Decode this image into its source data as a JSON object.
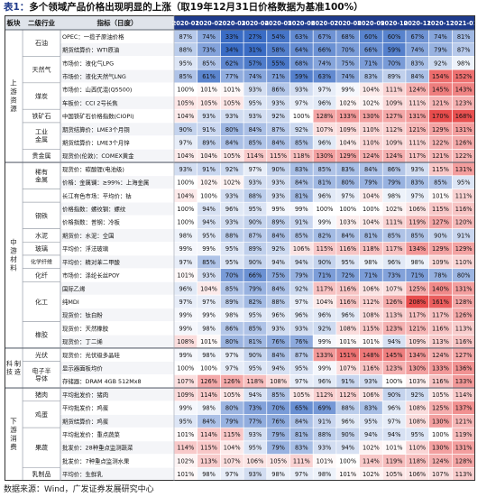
{
  "title": {
    "lead": "表1：",
    "text": "多个领域产品价格出现明显的上涨（取19年12月31日价格数据为基准100%）"
  },
  "footer": "数据来源：Wind，广发证券发展研究中心",
  "chart_data": {
    "type": "table",
    "headers": {
      "sector": "板块",
      "industry": "二级行业",
      "indicator": "指标（日度）"
    },
    "months": [
      "2020-01",
      "2020-02",
      "2020-03",
      "2020-04",
      "2020-05",
      "2020-06",
      "2020-07",
      "2020-08",
      "2020-09",
      "2020-10",
      "2020-11",
      "2020-12",
      "2021-01"
    ],
    "sectors": [
      {
        "name": "上游资源",
        "start": 0,
        "span": 10
      },
      {
        "name": "中游材料",
        "start": 10,
        "span": 14
      },
      {
        "name": "科技制造",
        "start": 24,
        "span": 3
      },
      {
        "name": "下游消费",
        "start": 27,
        "span": 7
      }
    ],
    "industries": [
      {
        "name": "石油",
        "start": 0,
        "span": 2
      },
      {
        "name": "天然气",
        "start": 2,
        "span": 2
      },
      {
        "name": "煤炭",
        "start": 4,
        "span": 2
      },
      {
        "name": "铁矿石",
        "start": 6,
        "span": 1
      },
      {
        "name": "工业金属",
        "start": 7,
        "span": 2
      },
      {
        "name": "贵金属",
        "start": 9,
        "span": 1
      },
      {
        "name": "稀有金属",
        "start": 10,
        "span": 2
      },
      {
        "name": "",
        "start": 12,
        "span": 1
      },
      {
        "name": "钢铁",
        "start": 13,
        "span": 2
      },
      {
        "name": "水泥",
        "start": 15,
        "span": 1
      },
      {
        "name": "玻璃",
        "start": 16,
        "span": 1
      },
      {
        "name": "化学纤维",
        "start": 17,
        "span": 1
      },
      {
        "name": "化纤",
        "start": 18,
        "span": 1
      },
      {
        "name": "化工",
        "start": 19,
        "span": 3
      },
      {
        "name": "橡胶",
        "start": 22,
        "span": 2
      },
      {
        "name": "光伏",
        "start": 24,
        "span": 1
      },
      {
        "name": "电子半导体",
        "start": 25,
        "span": 2
      },
      {
        "name": "猪肉",
        "start": 27,
        "span": 1
      },
      {
        "name": "鸡蛋",
        "start": 28,
        "span": 2
      },
      {
        "name": "果蔬",
        "start": 30,
        "span": 3
      },
      {
        "name": "乳制品",
        "start": 33,
        "span": 1
      }
    ],
    "rows": [
      {
        "indicator": "OPEC：一揽子原油价格",
        "values": [
          87,
          74,
          33,
          27,
          54,
          63,
          67,
          68,
          60,
          60,
          67,
          74,
          81
        ]
      },
      {
        "indicator": "期货结算价：WTI原油",
        "values": [
          88,
          73,
          34,
          31,
          58,
          64,
          66,
          70,
          66,
          59,
          74,
          79,
          87
        ]
      },
      {
        "indicator": "市场价：液化气LPG",
        "values": [
          95,
          85,
          62,
          57,
          55,
          68,
          74,
          75,
          71,
          70,
          83,
          92,
          98
        ]
      },
      {
        "indicator": "市场价：液化天然气LNG",
        "values": [
          85,
          61,
          77,
          74,
          71,
          59,
          63,
          74,
          83,
          89,
          84,
          154,
          152
        ]
      },
      {
        "indicator": "市场价：山西优混(Q5500)",
        "values": [
          100,
          101,
          101,
          93,
          86,
          93,
          97,
          99,
          104,
          111,
          124,
          145,
          143
        ]
      },
      {
        "indicator": "车板价：CCI 2号长焦",
        "values": [
          105,
          105,
          105,
          95,
          93,
          97,
          96,
          102,
          102,
          109,
          111,
          121,
          123
        ]
      },
      {
        "indicator": "中国铁矿石价格指数(CIOPI)",
        "values": [
          104,
          93,
          93,
          93,
          92,
          100,
          128,
          133,
          130,
          127,
          131,
          170,
          168
        ]
      },
      {
        "indicator": "期货结算价：LME3个月铜",
        "values": [
          90,
          91,
          80,
          84,
          87,
          92,
          107,
          109,
          110,
          112,
          121,
          129,
          131
        ]
      },
      {
        "indicator": "期货结算价：LME3个月锌",
        "values": [
          97,
          89,
          84,
          85,
          84,
          85,
          96,
          104,
          110,
          109,
          111,
          122,
          126
        ]
      },
      {
        "indicator": "现货价(伦敦)：COMEX黄金",
        "values": [
          104,
          104,
          105,
          114,
          115,
          118,
          130,
          129,
          124,
          124,
          117,
          121,
          122
        ]
      },
      {
        "indicator": "现货价：碳酸锂(电池级)",
        "values": [
          93,
          91,
          92,
          97,
          90,
          83,
          85,
          83,
          84,
          86,
          93,
          115,
          131
        ]
      },
      {
        "indicator": "价格：金属镧：≥99%：上海金属",
        "values": [
          100,
          102,
          102,
          93,
          93,
          84,
          81,
          80,
          79,
          79,
          83,
          85,
          95
        ]
      },
      {
        "indicator": "长江有色市场：平均价：钴",
        "values": [
          104,
          100,
          93,
          88,
          93,
          81,
          96,
          97,
          104,
          98,
          97,
          101,
          111
        ]
      },
      {
        "indicator": "价格指数：螺纹钢：螺纹",
        "values": [
          100,
          94,
          96,
          95,
          99,
          99,
          100,
          100,
          100,
          102,
          106,
          115,
          116
        ]
      },
      {
        "indicator": "价格指数：普钢：冷板",
        "values": [
          100,
          94,
          93,
          90,
          89,
          91,
          99,
          103,
          104,
          111,
          119,
          127,
          120
        ]
      },
      {
        "indicator": "期货价：水泥：全国",
        "values": [
          98,
          95,
          88,
          87,
          84,
          85,
          82,
          84,
          81,
          85,
          85,
          90,
          91
        ]
      },
      {
        "indicator": "平均价：浮法玻璃",
        "values": [
          99,
          99,
          95,
          89,
          92,
          106,
          115,
          116,
          118,
          117,
          134,
          129,
          129
        ]
      },
      {
        "indicator": "平均价：精对苯二甲酸",
        "values": [
          97,
          85,
          95,
          90,
          94,
          94,
          90,
          95,
          98,
          96,
          98,
          109,
          110
        ]
      },
      {
        "indicator": "市场价：涤纶长丝POY",
        "values": [
          101,
          93,
          70,
          66,
          75,
          79,
          71,
          72,
          71,
          73,
          71,
          78,
          80
        ]
      },
      {
        "indicator": "国际乙烯",
        "values": [
          96,
          104,
          85,
          79,
          84,
          92,
          117,
          116,
          106,
          107,
          125,
          140,
          131
        ]
      },
      {
        "indicator": "纯MDI",
        "values": [
          97,
          97,
          89,
          82,
          88,
          97,
          104,
          116,
          112,
          126,
          208,
          161,
          128
        ]
      },
      {
        "indicator": "现货价：钛白粉",
        "values": [
          99,
          99,
          98,
          95,
          96,
          96,
          96,
          96,
          108,
          113,
          117,
          117,
          126
        ]
      },
      {
        "indicator": "现货价：天然橡胶",
        "values": [
          99,
          98,
          86,
          85,
          93,
          93,
          92,
          108,
          115,
          123,
          121,
          116,
          113
        ]
      },
      {
        "indicator": "现货价：丁二烯",
        "values": [
          108,
          101,
          80,
          81,
          76,
          76,
          99,
          101,
          101,
          94,
          109,
          113,
          116
        ]
      },
      {
        "indicator": "现货价：光伏级多晶硅",
        "values": [
          99,
          98,
          97,
          90,
          84,
          87,
          133,
          151,
          148,
          145,
          134,
          124,
          127
        ]
      },
      {
        "indicator": "显示器面板均价",
        "values": [
          100,
          100,
          97,
          95,
          94,
          95,
          99,
          107,
          116,
          123,
          130,
          133,
          136
        ]
      },
      {
        "indicator": "存储器：DRAM 4GB 512Mx8",
        "values": [
          107,
          126,
          126,
          118,
          108,
          97,
          96,
          91,
          93,
          100,
          103,
          116,
          133
        ]
      },
      {
        "indicator": "平均批发价：猪肉",
        "values": [
          109,
          114,
          105,
          94,
          85,
          105,
          112,
          112,
          106,
          90,
          92,
          105,
          114
        ]
      },
      {
        "indicator": "平均批发价：鸡蛋",
        "values": [
          99,
          98,
          80,
          73,
          70,
          65,
          69,
          88,
          83,
          96,
          108,
          125,
          137
        ]
      },
      {
        "indicator": "期货结算价：鸡蛋",
        "values": [
          95,
          84,
          79,
          77,
          76,
          84,
          91,
          96,
          95,
          97,
          108,
          130,
          121
        ]
      },
      {
        "indicator": "平均批发价：重点蔬菜",
        "values": [
          101,
          114,
          115,
          93,
          79,
          81,
          88,
          90,
          94,
          94,
          95,
          100,
          119
        ]
      },
      {
        "indicator": "批发价：28种重点监测蔬菜",
        "values": [
          114,
          115,
          104,
          95,
          79,
          83,
          93,
          94,
          102,
          101,
          110,
          130,
          131
        ]
      },
      {
        "indicator": "批发价：7种重点监测水果",
        "values": [
          102,
          113,
          107,
          106,
          105,
          111,
          101,
          100,
          114,
          119,
          118,
          124,
          128
        ]
      },
      {
        "indicator": "平均价：生鲜乳",
        "values": [
          101,
          98,
          97,
          93,
          98,
          97,
          98,
          101,
          102,
          105,
          106,
          107,
          113
        ]
      }
    ]
  }
}
